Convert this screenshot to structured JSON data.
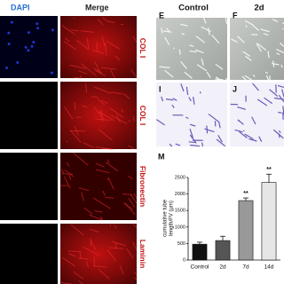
{
  "column_titles": [
    "DAPI",
    "Merge"
  ],
  "row_labels": [
    "COL I",
    "COL I",
    "Fibronectin",
    "Laminin"
  ],
  "panels": {
    "labels": [
      "E",
      "F",
      "I",
      "J"
    ],
    "titles": [
      "Control",
      "2d"
    ]
  },
  "chart_data": {
    "type": "bar",
    "panel_label": "M",
    "ylabel": [
      "cumulative tube",
      "length/FV (µm)"
    ],
    "categories": [
      "Control",
      "2d",
      "7d",
      "14d"
    ],
    "values": [
      480,
      590,
      1800,
      2350
    ],
    "errors": [
      60,
      130,
      80,
      250
    ],
    "colors": [
      "#111111",
      "#555555",
      "#999999",
      "#e6e6e6"
    ],
    "annotations": [
      null,
      null,
      "**",
      "**"
    ],
    "ylim": [
      0,
      2500
    ],
    "yticks": [
      0,
      500,
      1000,
      1500,
      2000,
      2500
    ]
  }
}
